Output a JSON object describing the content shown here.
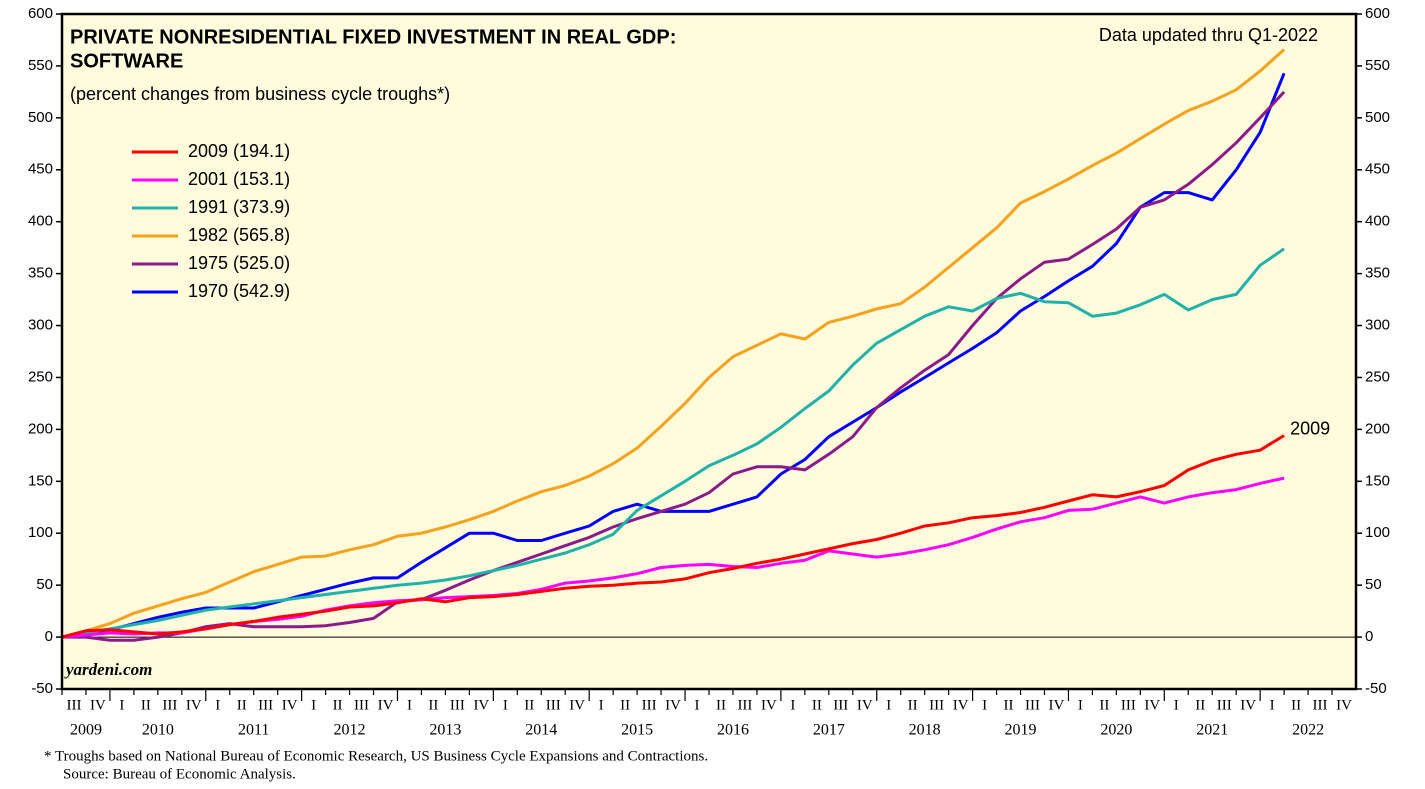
{
  "chart_data": {
    "type": "line",
    "title": [
      "PRIVATE NONRESIDENTIAL FIXED INVESTMENT IN REAL GDP:",
      "SOFTWARE"
    ],
    "subtitle": "(percent changes from business cycle troughs*)",
    "note": "Data updated thru Q1-2022",
    "watermark": "yardeni.com",
    "end_label": "2009",
    "footnotes": [
      "*   Troughs based on National Bureau of Economic Research, US Business Cycle Expansions and Contractions.",
      "Source: Bureau of Economic Analysis."
    ],
    "categories": [
      "III",
      "IV",
      "I",
      "II",
      "III",
      "IV",
      "I",
      "II",
      "III",
      "IV",
      "I",
      "II",
      "III",
      "IV",
      "I",
      "II",
      "III",
      "IV",
      "I",
      "II",
      "III",
      "IV",
      "I",
      "II",
      "III",
      "IV",
      "I",
      "II",
      "III",
      "IV",
      "I",
      "II",
      "III",
      "IV",
      "I",
      "II",
      "III",
      "IV",
      "I",
      "II",
      "III",
      "IV",
      "I",
      "II",
      "III",
      "IV",
      "I",
      "II",
      "III",
      "IV",
      "I",
      "II",
      "III",
      "IV"
    ],
    "years": [
      "2009",
      "2010",
      "2011",
      "2012",
      "2013",
      "2014",
      "2015",
      "2016",
      "2017",
      "2018",
      "2019",
      "2020",
      "2021",
      "2022"
    ],
    "ylim": [
      -50,
      600
    ],
    "yticks": [
      -50,
      0,
      50,
      100,
      150,
      200,
      250,
      300,
      350,
      400,
      450,
      500,
      550,
      600
    ],
    "series": [
      {
        "name": "2009 (194.1)",
        "color": "#ff0000",
        "values": [
          0,
          6,
          7,
          5,
          3,
          5,
          8,
          12,
          15,
          19,
          22,
          25,
          29,
          30,
          33,
          37,
          34,
          38,
          39,
          41,
          44,
          47,
          49,
          50,
          52,
          53,
          56,
          62,
          66,
          71,
          75,
          80,
          85,
          90,
          94,
          100,
          107,
          110,
          115,
          117,
          120,
          125,
          131,
          137,
          135,
          140,
          146,
          161,
          170,
          176,
          180,
          194.1,
          null,
          null
        ]
      },
      {
        "name": "2001 (153.1)",
        "color": "#ff00ff",
        "values": [
          0,
          2,
          4,
          3,
          4,
          4,
          8,
          12,
          15,
          17,
          20,
          26,
          30,
          33,
          35,
          36,
          38,
          39,
          40,
          42,
          46,
          52,
          54,
          57,
          61,
          67,
          69,
          70,
          68,
          67,
          71,
          74,
          83,
          80,
          77,
          80,
          84,
          89,
          96,
          104,
          111,
          115,
          122,
          123,
          129,
          135,
          129,
          135,
          139,
          142,
          148,
          153.1,
          null,
          null
        ]
      },
      {
        "name": "1991 (373.9)",
        "color": "#20b2aa",
        "values": [
          0,
          4,
          8,
          12,
          16,
          21,
          26,
          29,
          32,
          35,
          38,
          41,
          44,
          47,
          50,
          52,
          55,
          59,
          64,
          69,
          75,
          81,
          89,
          99,
          122,
          136,
          150,
          165,
          175,
          186,
          202,
          220,
          237,
          262,
          283,
          296,
          309,
          318,
          314,
          326,
          331,
          323,
          322,
          309,
          312,
          320,
          330,
          315,
          325,
          330,
          358,
          373.9,
          null,
          null
        ]
      },
      {
        "name": "1982 (565.8)",
        "color": "#f7a21b",
        "values": [
          0,
          6,
          13,
          23,
          30,
          37,
          43,
          53,
          63,
          70,
          77,
          78,
          84,
          89,
          97,
          100,
          106,
          113,
          121,
          131,
          140,
          146,
          155,
          167,
          182,
          203,
          225,
          250,
          270,
          281,
          292,
          287,
          303,
          309,
          316,
          321,
          337,
          356,
          375,
          394,
          418,
          429,
          441,
          454,
          466,
          480,
          494,
          507,
          516,
          527,
          545,
          565.8,
          null,
          null
        ]
      },
      {
        "name": "1975 (525.0)",
        "color": "#8b1a8b",
        "values": [
          0,
          0,
          -3,
          -3,
          0,
          4,
          10,
          13,
          10,
          10,
          10,
          11,
          14,
          18,
          34,
          36,
          45,
          55,
          64,
          72,
          80,
          88,
          96,
          106,
          114,
          121,
          128,
          139,
          157,
          164,
          164,
          161,
          176,
          193,
          221,
          240,
          257,
          272,
          300,
          326,
          345,
          361,
          364,
          378,
          393,
          414,
          421,
          436,
          455,
          476,
          500,
          525.0,
          null,
          null
        ]
      },
      {
        "name": "1970 (542.9)",
        "color": "#0000ff",
        "values": [
          0,
          4,
          7,
          13,
          19,
          24,
          28,
          28,
          28,
          34,
          40,
          46,
          52,
          57,
          57,
          72,
          86,
          100,
          100,
          93,
          93,
          100,
          107,
          121,
          128,
          121,
          121,
          121,
          128,
          135,
          157,
          171,
          193,
          207,
          221,
          236,
          250,
          264,
          278,
          293,
          314,
          328,
          343,
          357,
          379,
          414,
          428,
          428,
          421,
          450,
          486,
          542.9,
          null,
          null
        ]
      }
    ]
  }
}
